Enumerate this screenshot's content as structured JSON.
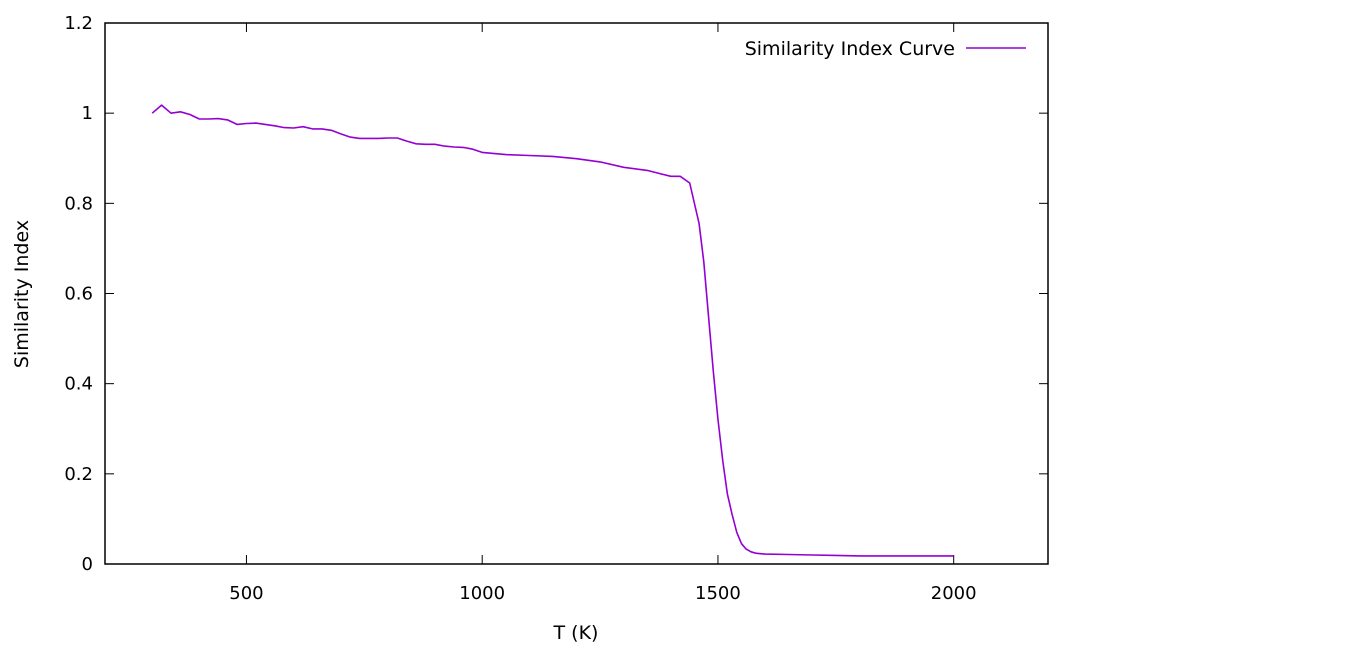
{
  "chart_data": {
    "type": "line",
    "title": "",
    "xlabel": "T (K)",
    "ylabel": "Similarity Index",
    "xlim": [
      200,
      2200
    ],
    "ylim": [
      0,
      1.2
    ],
    "x_ticks": [
      500,
      1000,
      1500,
      2000
    ],
    "x_tick_labels": [
      "500",
      "1000",
      "1500",
      "2000"
    ],
    "y_ticks": [
      0,
      0.2,
      0.4,
      0.6,
      0.8,
      1,
      1.2
    ],
    "y_tick_labels": [
      "0",
      "0.2",
      "0.4",
      "0.6",
      "0.8",
      "1",
      "1.2"
    ],
    "grid": false,
    "legend_position": "top-right",
    "series": [
      {
        "name": "Similarity Index Curve",
        "color": "#9400d3",
        "x": [
          300,
          320,
          340,
          360,
          380,
          400,
          420,
          440,
          460,
          480,
          500,
          520,
          540,
          560,
          580,
          600,
          620,
          640,
          660,
          680,
          700,
          720,
          740,
          760,
          780,
          800,
          820,
          840,
          860,
          880,
          900,
          920,
          940,
          960,
          980,
          1000,
          1050,
          1100,
          1150,
          1200,
          1250,
          1300,
          1350,
          1380,
          1400,
          1420,
          1440,
          1460,
          1470,
          1480,
          1490,
          1500,
          1510,
          1520,
          1530,
          1540,
          1550,
          1560,
          1570,
          1580,
          1600,
          1650,
          1700,
          1750,
          1800,
          1850,
          1900,
          1950,
          2000
        ],
        "y": [
          1.0,
          1.018,
          1.0,
          1.003,
          0.997,
          0.987,
          0.987,
          0.988,
          0.985,
          0.975,
          0.977,
          0.978,
          0.975,
          0.972,
          0.968,
          0.967,
          0.97,
          0.965,
          0.965,
          0.962,
          0.954,
          0.947,
          0.944,
          0.944,
          0.944,
          0.945,
          0.945,
          0.938,
          0.932,
          0.931,
          0.931,
          0.927,
          0.925,
          0.924,
          0.92,
          0.913,
          0.908,
          0.906,
          0.904,
          0.899,
          0.892,
          0.88,
          0.873,
          0.865,
          0.86,
          0.86,
          0.845,
          0.755,
          0.67,
          0.55,
          0.43,
          0.32,
          0.23,
          0.155,
          0.11,
          0.07,
          0.045,
          0.033,
          0.027,
          0.024,
          0.022,
          0.021,
          0.02,
          0.019,
          0.018,
          0.018,
          0.018,
          0.018,
          0.018
        ]
      }
    ]
  }
}
